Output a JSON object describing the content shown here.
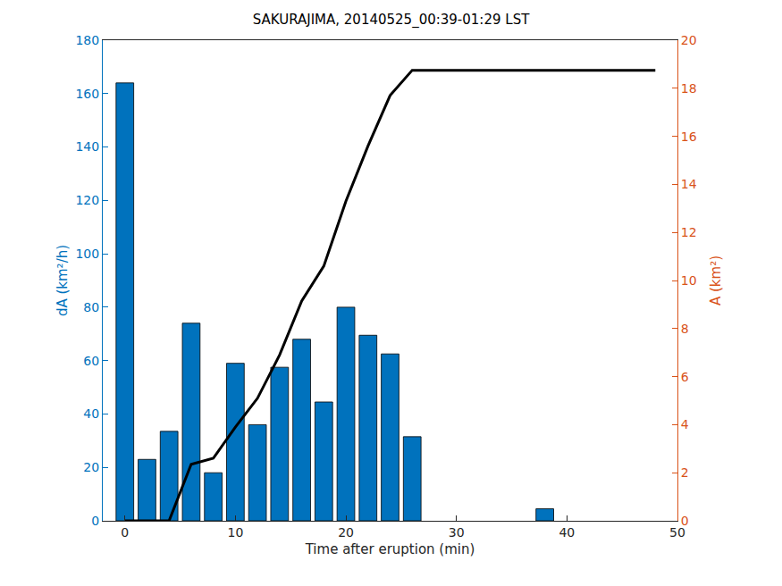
{
  "chart_data": {
    "type": "bar",
    "title": "SAKURAJIMA, 20140525_00:39-01:29 LST",
    "x_label": "Time after eruption (min)",
    "y_label": "dA (km²/h)",
    "y2_label": "A (km²)",
    "xlim": [
      -2,
      50
    ],
    "xticks": [
      0,
      10,
      20,
      30,
      40,
      50
    ],
    "ylim": [
      0,
      180
    ],
    "yticks": [
      0,
      20,
      40,
      60,
      80,
      100,
      120,
      140,
      160,
      180
    ],
    "y2lim": [
      0,
      20
    ],
    "y2ticks": [
      0,
      2,
      4,
      6,
      8,
      10,
      12,
      14,
      16,
      18,
      20
    ],
    "grid": false,
    "series": [
      {
        "type": "bar",
        "axis": "y",
        "color": "#0072BD",
        "x": [
          0,
          2,
          4,
          6,
          8,
          10,
          12,
          14,
          16,
          18,
          20,
          22,
          24,
          26,
          38
        ],
        "values": [
          164,
          23,
          33.5,
          74,
          18,
          59,
          36,
          57.5,
          68,
          44.5,
          80,
          69.5,
          62.5,
          31.5,
          4.5
        ]
      },
      {
        "type": "line",
        "axis": "y2",
        "color": "#000000",
        "x": [
          0,
          2,
          4,
          6,
          8,
          10,
          12,
          14,
          16,
          18,
          20,
          22,
          24,
          26,
          28,
          30,
          32,
          34,
          36,
          38,
          40,
          42,
          44,
          46,
          48
        ],
        "values": [
          0,
          0,
          0,
          2.35,
          2.6,
          3.9,
          5.1,
          6.9,
          9.15,
          10.6,
          13.3,
          15.6,
          17.7,
          18.75,
          18.75,
          18.75,
          18.75,
          18.75,
          18.75,
          18.75,
          18.75,
          18.75,
          18.75,
          18.75,
          18.75
        ]
      }
    ]
  }
}
